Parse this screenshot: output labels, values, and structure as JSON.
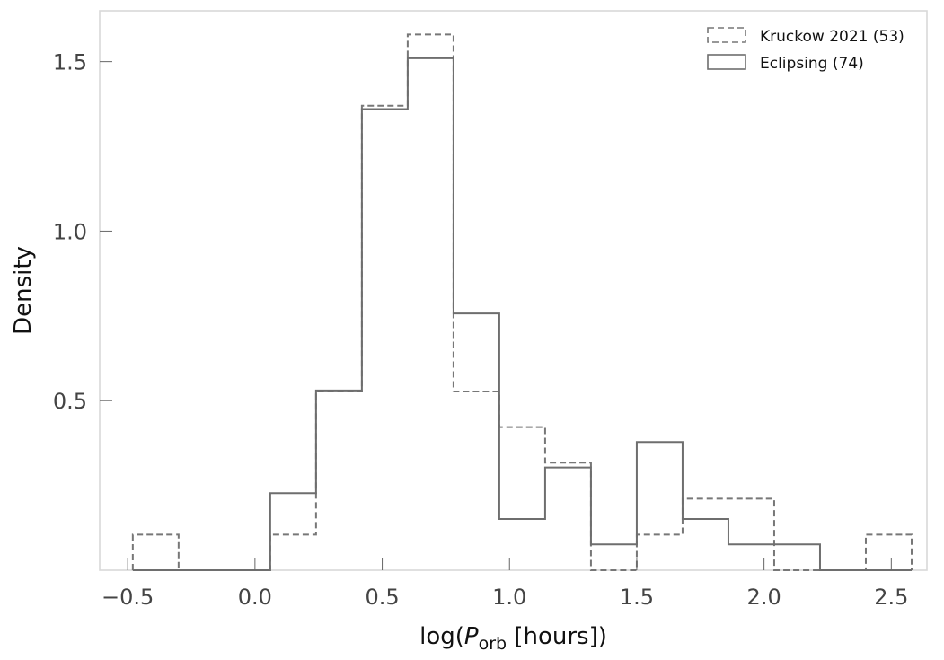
{
  "chart_data": {
    "type": "histogram",
    "xlabel_parts": {
      "prefix": "log(",
      "var": "P",
      "sub": "orb",
      "suffix": " [hours])"
    },
    "ylabel": "Density",
    "xlim": [
      -0.61,
      2.64
    ],
    "ylim": [
      0,
      1.65
    ],
    "xticks": [
      -0.5,
      0.0,
      0.5,
      1.0,
      1.5,
      2.0,
      2.5
    ],
    "xtick_labels": [
      "−0.5",
      "0.0",
      "0.5",
      "1.0",
      "1.5",
      "2.0",
      "2.5"
    ],
    "yticks": [
      0.5,
      1.0,
      1.5
    ],
    "ytick_labels": [
      "0.5",
      "1.0",
      "1.5"
    ],
    "grid": false,
    "legend_position": "top-right",
    "bin_edges": [
      -0.48,
      -0.3,
      -0.12,
      0.06,
      0.24,
      0.42,
      0.6,
      0.78,
      0.96,
      1.14,
      1.32,
      1.5,
      1.68,
      1.86,
      2.04,
      2.22,
      2.4,
      2.58
    ],
    "series": [
      {
        "name": "Kruckow 2021 (53)",
        "style": "dashed",
        "color": "#777777",
        "values": [
          0.105,
          0,
          0,
          0.105,
          0.527,
          1.37,
          1.58,
          0.527,
          0.422,
          0.317,
          0,
          0.105,
          0.211,
          0.211,
          0,
          0,
          0.105
        ]
      },
      {
        "name": "Eclipsing (74)",
        "style": "solid",
        "color": "#6e6e6e",
        "values": [
          0,
          0,
          0,
          0.227,
          0.53,
          1.36,
          1.51,
          0.757,
          0.151,
          0.303,
          0.076,
          0.378,
          0.151,
          0.076,
          0.076,
          0,
          0
        ]
      }
    ]
  }
}
